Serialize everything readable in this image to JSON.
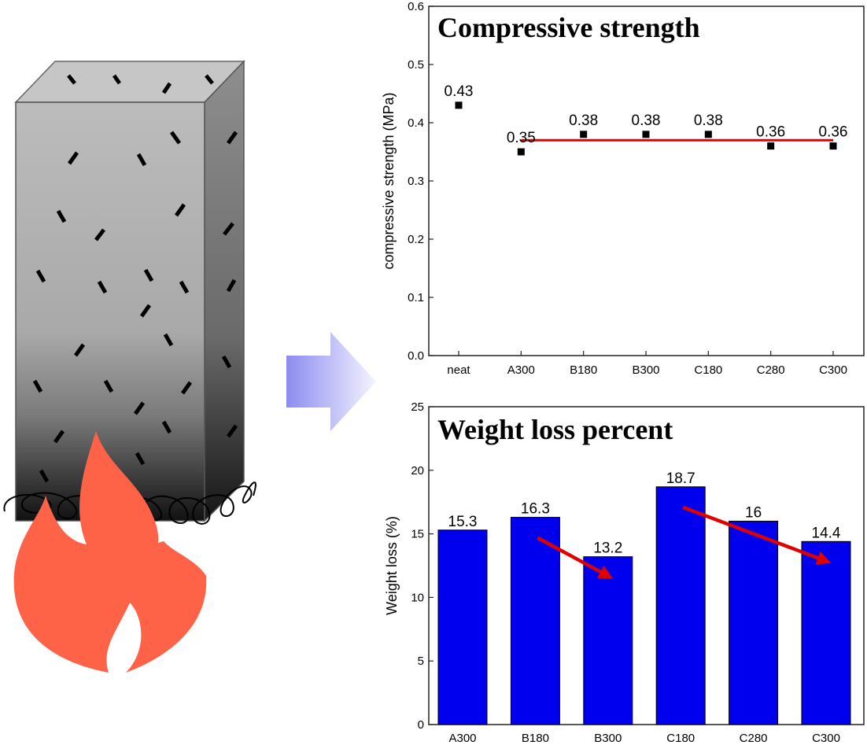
{
  "chart_data": [
    {
      "type": "scatter",
      "title": "Compressive strength",
      "xlabel": "",
      "ylabel": "compressive strength (MPa)",
      "categories": [
        "neat",
        "A300",
        "B180",
        "B300",
        "C180",
        "C280",
        "C300"
      ],
      "values": [
        0.43,
        0.35,
        0.38,
        0.38,
        0.38,
        0.36,
        0.36
      ],
      "data_labels": [
        "0.43",
        "0.35",
        "0.38",
        "0.38",
        "0.38",
        "0.36",
        "0.36"
      ],
      "ylim": [
        0,
        0.6
      ],
      "yticks": [
        "0.0",
        "0.1",
        "0.2",
        "0.3",
        "0.4",
        "0.5",
        "0.6"
      ],
      "reference_line": {
        "from": "A300",
        "to": "C300",
        "y": 0.37,
        "color": "#e00000"
      },
      "marker_color": "#000000",
      "grid": false
    },
    {
      "type": "bar",
      "title": "Weight loss percent",
      "xlabel": "",
      "ylabel": "Weight loss (%)",
      "categories": [
        "A300",
        "B180",
        "B300",
        "C180",
        "C280",
        "C300"
      ],
      "values": [
        15.3,
        16.3,
        13.2,
        18.7,
        16,
        14.4
      ],
      "data_labels": [
        "15.3",
        "16.3",
        "13.2",
        "18.7",
        "16",
        "14.4"
      ],
      "ylim": [
        0,
        25
      ],
      "yticks": [
        "0",
        "5",
        "10",
        "15",
        "20",
        "25"
      ],
      "bar_color": "#0000ee",
      "trend_arrows": [
        {
          "from": "B180",
          "to": "B300",
          "color": "#e00000"
        },
        {
          "from": "C180",
          "to": "C300",
          "color": "#e00000"
        }
      ],
      "grid": false
    }
  ],
  "illustration": {
    "block": "fiber-reinforced-block",
    "flame_color": "#ff6347",
    "arrow_color": "#8c8cf0"
  }
}
